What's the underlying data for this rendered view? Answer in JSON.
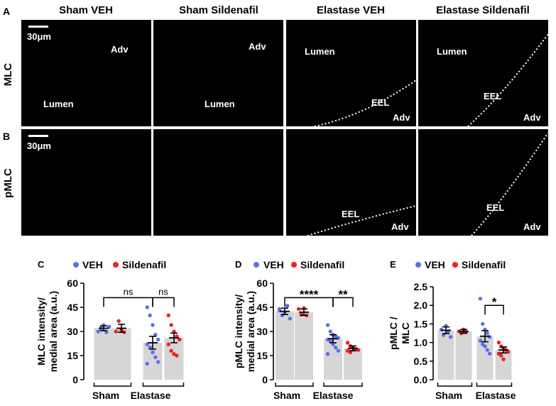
{
  "panel_letters": [
    "A",
    "B",
    "C",
    "D",
    "E"
  ],
  "micrographs": {
    "column_titles": [
      "Sham VEH",
      "Sham Sildenafil",
      "Elastase VEH",
      "Elastase Sildenafil"
    ],
    "row_labels": [
      "MLC",
      "pMLC"
    ],
    "scale_bar_text": "30μm",
    "region_labels": {
      "lumen": "Lumen",
      "adventitia": "Adv",
      "eel": "EEL"
    },
    "channel_colors": {
      "MLC": "#22dd22",
      "pMLC": "#ee1a1a"
    }
  },
  "legend": {
    "veh_label": "VEH",
    "sildenafil_label": "Sildenafil"
  },
  "colors": {
    "veh": "#5b6ff0",
    "sildenafil": "#ee2020",
    "bar": "#d6d6d6"
  },
  "chart_data": [
    {
      "panel": "C",
      "type": "bar",
      "ylabel": "MLC intensity/ medial area (a.u.)",
      "ylim": [
        0,
        60
      ],
      "yticks": [
        0,
        15,
        30,
        45,
        60
      ],
      "groups": [
        "Sham",
        "Elastase"
      ],
      "series": [
        {
          "name": "VEH",
          "values": [
            32,
            23
          ],
          "sem": [
            1.5,
            4
          ]
        },
        {
          "name": "Sildenafil",
          "values": [
            32,
            26
          ],
          "sem": [
            2.5,
            3
          ]
        }
      ],
      "points": [
        [
          30,
          32,
          34,
          29.5,
          33
        ],
        [
          30,
          36.5,
          31,
          29.5
        ],
        [
          45,
          40,
          34,
          28,
          25,
          22,
          20,
          17,
          14,
          11,
          10
        ],
        [
          40,
          34,
          30,
          27,
          25,
          22,
          18,
          16,
          15
        ]
      ],
      "comparisons": [
        {
          "label": "ns",
          "between": "Sham VEH vs Elastase VEH"
        },
        {
          "label": "ns",
          "between": "Elastase VEH vs Elastase Sildenafil"
        }
      ]
    },
    {
      "panel": "D",
      "type": "bar",
      "ylabel": "pMLC intensity/ medial area (a.u.)",
      "ylim": [
        0,
        60
      ],
      "yticks": [
        0,
        15,
        30,
        45,
        60
      ],
      "groups": [
        "Sham",
        "Elastase"
      ],
      "series": [
        {
          "name": "VEH",
          "values": [
            42.5,
            25.5
          ],
          "sem": [
            2,
            2.5
          ]
        },
        {
          "name": "Sildenafil",
          "values": [
            42,
            19.5
          ],
          "sem": [
            2,
            1.5
          ]
        }
      ],
      "points": [
        [
          44,
          40,
          42,
          46,
          38,
          43
        ],
        [
          44,
          40.5,
          44.5,
          40
        ],
        [
          34,
          30,
          28,
          27,
          26,
          25,
          24,
          22,
          20,
          18,
          16
        ],
        [
          23,
          21,
          20,
          19,
          18.5,
          18,
          17
        ]
      ],
      "comparisons": [
        {
          "label": "****",
          "between": "Sham VEH vs Elastase VEH"
        },
        {
          "label": "**",
          "between": "Elastase VEH vs Elastase Sildenafil"
        }
      ]
    },
    {
      "panel": "E",
      "type": "bar",
      "ylabel": "pMLC / MLC",
      "ylim": [
        0,
        2.5
      ],
      "yticks": [
        0.0,
        0.5,
        1.0,
        1.5,
        2.0,
        2.5
      ],
      "groups": [
        "Sham",
        "Elastase"
      ],
      "series": [
        {
          "name": "VEH",
          "values": [
            1.33,
            1.17
          ],
          "sem": [
            0.09,
            0.15
          ]
        },
        {
          "name": "Sildenafil",
          "values": [
            1.3,
            0.8
          ],
          "sem": [
            0.05,
            0.08
          ]
        }
      ],
      "points": [
        [
          1.35,
          1.2,
          1.45,
          1.3,
          1.15
        ],
        [
          1.3,
          1.25,
          1.35,
          1.28
        ],
        [
          2.18,
          1.5,
          1.35,
          1.25,
          1.15,
          1.05,
          0.95,
          0.9,
          0.8,
          0.7
        ],
        [
          1.0,
          0.9,
          0.85,
          0.8,
          0.75,
          0.7,
          0.65,
          0.55
        ]
      ],
      "comparisons": [
        {
          "label": "*",
          "between": "Elastase VEH vs Elastase Sildenafil"
        }
      ]
    }
  ]
}
